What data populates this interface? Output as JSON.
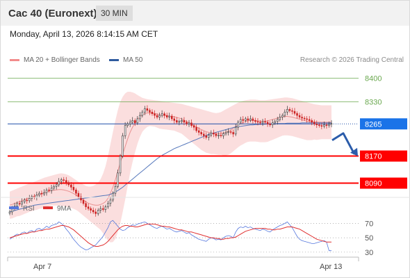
{
  "header": {
    "title": "Cac 40 (Euronext)",
    "period": "30 MIN"
  },
  "datetime": "Monday, April 13, 2026 8:14:15 AM CET",
  "legend": {
    "bollinger": "MA 20 + Bollinger Bands",
    "ma50": "MA 50"
  },
  "credit": "Research © 2026 Trading Central",
  "rsi_legend": {
    "rsi": "RSI",
    "ma": "9MA"
  },
  "colors": {
    "resistance": "#6aa84f",
    "support": "#ff0000",
    "pivot": "#1f4ea8",
    "bollinger_fill": "#fbdede",
    "ma20": "#e89090",
    "ma50": "#5577bb",
    "candle_up": "#333333",
    "candle_down": "#cc2222",
    "rsi": "#5577dd",
    "rsi_ma": "#e03030",
    "arrow": "#2b5caa"
  },
  "chart_data": [
    {
      "type": "candlestick",
      "title": "Cac 40 (Euronext)",
      "x_labels": [
        "Apr 7",
        "Apr 13"
      ],
      "ylim": [
        8050,
        8440
      ],
      "levels": [
        {
          "label": "8400",
          "value": 8400,
          "kind": "resistance"
        },
        {
          "label": "8330",
          "value": 8330,
          "kind": "resistance"
        },
        {
          "label": "8265",
          "value": 8265,
          "kind": "pivot"
        },
        {
          "label": "8170",
          "value": 8170,
          "kind": "support"
        },
        {
          "label": "8090",
          "value": 8090,
          "kind": "support"
        }
      ],
      "close": [
        8005,
        8015,
        8022,
        8030,
        8028,
        8035,
        8040,
        8038,
        8045,
        8050,
        8048,
        8055,
        8060,
        8058,
        8062,
        8070,
        8068,
        8075,
        8080,
        8085,
        8095,
        8100,
        8098,
        8092,
        8085,
        8078,
        8070,
        8060,
        8050,
        8040,
        8030,
        8020,
        8015,
        8010,
        8005,
        8000,
        8010,
        8015,
        8012,
        8020,
        8030,
        8040,
        8060,
        8080,
        8120,
        8170,
        8230,
        8260,
        8265,
        8270,
        8275,
        8268,
        8280,
        8290,
        8300,
        8310,
        8305,
        8300,
        8295,
        8290,
        8285,
        8290,
        8295,
        8290,
        8285,
        8288,
        8280,
        8275,
        8270,
        8272,
        8275,
        8270,
        8265,
        8268,
        8260,
        8255,
        8245,
        8240,
        8235,
        8230,
        8225,
        8232,
        8238,
        8235,
        8230,
        8232,
        8230,
        8236,
        8240,
        8242,
        8240,
        8235,
        8255,
        8270,
        8278,
        8275,
        8280,
        8276,
        8280,
        8275,
        8272,
        8270,
        8268,
        8272,
        8270,
        8265,
        8262,
        8268,
        8272,
        8278,
        8285,
        8290,
        8300,
        8308,
        8304,
        8302,
        8296,
        8290,
        8285,
        8282,
        8280,
        8278,
        8275,
        8270,
        8265,
        8262,
        8260,
        8258,
        8262,
        8260,
        8264,
        8266
      ],
      "ma20": [
        8025,
        8027,
        8030,
        8033,
        8035,
        8038,
        8041,
        8044,
        8047,
        8049,
        8052,
        8054,
        8057,
        8059,
        8062,
        8064,
        8066,
        8068,
        8069,
        8070,
        8071,
        8071,
        8070,
        8068,
        8066,
        8063,
        8059,
        8055,
        8050,
        8045,
        8040,
        8035,
        8031,
        8028,
        8026,
        8025,
        8025,
        8027,
        8030,
        8035,
        8045,
        8060,
        8078,
        8100,
        8125,
        8150,
        8175,
        8198,
        8220,
        8240,
        8255,
        8268,
        8278,
        8286,
        8292,
        8295,
        8297,
        8298,
        8297,
        8296,
        8294,
        8292,
        8291,
        8290,
        8289,
        8288,
        8287,
        8286,
        8284,
        8282,
        8280,
        8276,
        8272,
        8268,
        8264,
        8260,
        8256,
        8252,
        8248,
        8245,
        8242,
        8240,
        8238,
        8237,
        8236,
        8236,
        8237,
        8238,
        8240,
        8243,
        8247,
        8252,
        8257,
        8262,
        8266,
        8269,
        8272,
        8274,
        8275,
        8275,
        8275,
        8274,
        8273,
        8273,
        8273,
        8274,
        8276,
        8278,
        8280,
        8282,
        8284,
        8286,
        8287,
        8287,
        8286,
        8285,
        8283,
        8281,
        8279,
        8277,
        8275,
        8273,
        8272,
        8271,
        8271,
        8270,
        8270,
        8270,
        8270,
        8270,
        8270,
        8270
      ],
      "bb_upper": [
        8065,
        8068,
        8071,
        8074,
        8077,
        8080,
        8083,
        8086,
        8089,
        8091,
        8094,
        8097,
        8100,
        8103,
        8106,
        8108,
        8110,
        8112,
        8114,
        8116,
        8118,
        8119,
        8118,
        8116,
        8113,
        8109,
        8104,
        8099,
        8094,
        8090,
        8086,
        8082,
        8080,
        8080,
        8082,
        8086,
        8092,
        8102,
        8118,
        8140,
        8170,
        8205,
        8240,
        8275,
        8305,
        8330,
        8345,
        8355,
        8360,
        8360,
        8358,
        8355,
        8350,
        8346,
        8342,
        8340,
        8338,
        8337,
        8336,
        8335,
        8334,
        8333,
        8332,
        8331,
        8330,
        8329,
        8328,
        8327,
        8326,
        8325,
        8324,
        8322,
        8320,
        8318,
        8316,
        8314,
        8312,
        8310,
        8308,
        8306,
        8304,
        8302,
        8300,
        8298,
        8297,
        8298,
        8300,
        8304,
        8308,
        8312,
        8316,
        8320,
        8324,
        8328,
        8331,
        8333,
        8335,
        8336,
        8337,
        8337,
        8337,
        8336,
        8335,
        8335,
        8335,
        8336,
        8337,
        8338,
        8339,
        8340,
        8341,
        8342,
        8343,
        8343,
        8342,
        8341,
        8339,
        8337,
        8335,
        8333,
        8331,
        8329,
        8327,
        8325,
        8323,
        8322,
        8321,
        8320,
        8320,
        8320,
        8320,
        8320
      ],
      "bb_lower": [
        7985,
        7986,
        7989,
        7992,
        7993,
        7996,
        7999,
        8002,
        8005,
        8007,
        8010,
        8011,
        8014,
        8015,
        8018,
        8020,
        8022,
        8024,
        8024,
        8024,
        8024,
        8023,
        8022,
        8020,
        8019,
        8017,
        8014,
        8011,
        8006,
        8000,
        7994,
        7988,
        7982,
        7976,
        7970,
        7964,
        7958,
        7952,
        7942,
        7930,
        7920,
        7915,
        7916,
        7925,
        7945,
        7970,
        8005,
        8041,
        8080,
        8120,
        8152,
        8181,
        8206,
        8226,
        8242,
        8250,
        8256,
        8259,
        8258,
        8257,
        8254,
        8251,
        8250,
        8249,
        8248,
        8247,
        8246,
        8245,
        8242,
        8239,
        8236,
        8230,
        8224,
        8218,
        8212,
        8206,
        8200,
        8194,
        8188,
        8184,
        8180,
        8178,
        8176,
        8176,
        8175,
        8174,
        8174,
        8172,
        8172,
        8174,
        8178,
        8184,
        8190,
        8196,
        8201,
        8205,
        8209,
        8212,
        8213,
        8213,
        8213,
        8212,
        8211,
        8211,
        8211,
        8212,
        8215,
        8218,
        8221,
        8224,
        8227,
        8230,
        8231,
        8231,
        8230,
        8229,
        8227,
        8225,
        8223,
        8221,
        8219,
        8217,
        8217,
        8217,
        8219,
        8218,
        8219,
        8220,
        8220,
        8220,
        8220,
        8220
      ],
      "ma50": [
        8005,
        8007,
        8009,
        8011,
        8013,
        8015,
        8017,
        8019,
        8021,
        8023,
        8025,
        8026,
        8027,
        8028,
        8029,
        8030,
        8031,
        8032,
        8033,
        8034,
        8035,
        8036,
        8037,
        8038,
        8039,
        8040,
        8041,
        8042,
        8043,
        8044,
        8045,
        8046,
        8047,
        8048,
        8049,
        8050,
        8051,
        8052,
        8053,
        8054,
        8055,
        8057,
        8060,
        8064,
        8068,
        8073,
        8078,
        8084,
        8090,
        8096,
        8102,
        8108,
        8114,
        8120,
        8126,
        8132,
        8138,
        8144,
        8150,
        8156,
        8162,
        8167,
        8172,
        8176,
        8180,
        8184,
        8188,
        8192,
        8195,
        8198,
        8201,
        8204,
        8207,
        8210,
        8213,
        8216,
        8219,
        8222,
        8225,
        8228,
        8231,
        8234,
        8236,
        8238,
        8240,
        8242,
        8244,
        8246,
        8248,
        8250,
        8252,
        8254,
        8256,
        8257,
        8258,
        8259,
        8260,
        8261,
        8262,
        8262,
        8263,
        8263,
        8264,
        8264,
        8264,
        8265,
        8265,
        8265,
        8265,
        8266,
        8266,
        8266,
        8266,
        8267,
        8267,
        8267,
        8267,
        8267,
        8267,
        8268,
        8268,
        8268,
        8268,
        8268,
        8268,
        8268,
        8268,
        8268,
        8268,
        8268,
        8268,
        8268
      ]
    },
    {
      "type": "line",
      "title": "RSI",
      "ylim": [
        25,
        80
      ],
      "y_ticks": [
        70,
        50,
        30
      ],
      "series": [
        {
          "name": "RSI",
          "values": [
            48,
            50,
            53,
            55,
            54,
            57,
            58,
            56,
            59,
            60,
            58,
            62,
            63,
            61,
            63,
            66,
            64,
            67,
            68,
            69,
            72,
            70,
            67,
            62,
            58,
            53,
            48,
            44,
            40,
            37,
            35,
            33,
            34,
            36,
            38,
            40,
            44,
            48,
            52,
            58,
            64,
            72,
            74,
            70,
            66,
            62,
            60,
            61,
            64,
            66,
            68,
            67,
            69,
            70,
            71,
            72,
            70,
            68,
            66,
            64,
            63,
            65,
            66,
            64,
            62,
            63,
            61,
            59,
            58,
            59,
            60,
            58,
            56,
            57,
            54,
            52,
            50,
            48,
            47,
            46,
            45,
            48,
            50,
            49,
            47,
            48,
            47,
            50,
            52,
            53,
            52,
            50,
            58,
            63,
            65,
            64,
            66,
            64,
            65,
            63,
            62,
            61,
            60,
            62,
            61,
            59,
            58,
            61,
            63,
            65,
            67,
            68,
            70,
            72,
            68,
            64,
            58,
            52,
            48,
            46,
            45,
            44,
            43,
            42,
            42,
            43,
            44,
            45,
            46,
            44,
            32,
            32
          ]
        },
        {
          "name": "9MA",
          "values": [
            50,
            51,
            52,
            53,
            54,
            55,
            56,
            56,
            57,
            58,
            58,
            59,
            60,
            60,
            61,
            62,
            62,
            63,
            64,
            65,
            66,
            67,
            67,
            66,
            65,
            63,
            61,
            58,
            55,
            52,
            49,
            46,
            43,
            41,
            39,
            38,
            38,
            39,
            40,
            42,
            45,
            49,
            53,
            57,
            61,
            64,
            66,
            67,
            67,
            66,
            66,
            65,
            65,
            66,
            67,
            68,
            69,
            69,
            69,
            69,
            68,
            67,
            66,
            66,
            65,
            65,
            64,
            63,
            62,
            61,
            61,
            60,
            59,
            58,
            58,
            57,
            56,
            55,
            54,
            53,
            52,
            51,
            50,
            50,
            49,
            49,
            48,
            48,
            49,
            49,
            50,
            50,
            51,
            53,
            55,
            57,
            59,
            60,
            61,
            62,
            63,
            63,
            63,
            63,
            63,
            62,
            62,
            61,
            61,
            62,
            62,
            63,
            64,
            65,
            65,
            65,
            64,
            63,
            62,
            60,
            58,
            56,
            54,
            52,
            50,
            48,
            47,
            46,
            45,
            44,
            44,
            44
          ]
        }
      ]
    }
  ]
}
